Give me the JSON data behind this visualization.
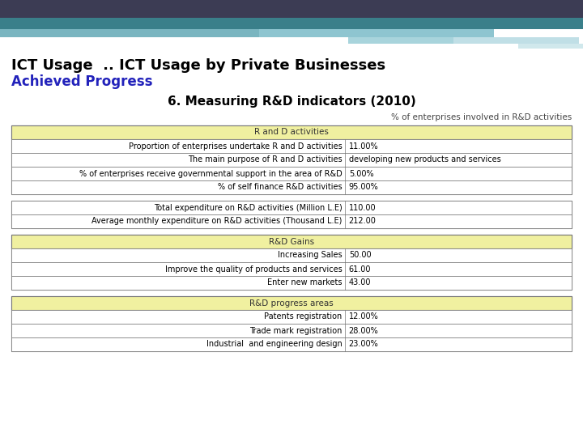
{
  "title1": "ICT Usage  .. ICT Usage by Private Businesses",
  "title2": "Achieved Progress",
  "subtitle": "6. Measuring R&D indicators (2010)",
  "note": "% of enterprises involved in R&D activities",
  "header_bg": "#f0f0a0",
  "border_color": "#777777",
  "title1_color": "#000000",
  "title2_color": "#2222bb",
  "sections": [
    {
      "header": "R and D activities",
      "rows": [
        [
          "Proportion of enterprises undertake R and D activities",
          "11.00%"
        ],
        [
          "The main purpose of R and D activities",
          "developing new products and services"
        ],
        [
          "% of enterprises receive governmental support in the area of R&D",
          "5.00%"
        ],
        [
          "% of self finance R&D activities",
          "95.00%"
        ]
      ]
    },
    {
      "header": null,
      "rows": [
        [
          "Total expenditure on R&D activities (Million L.E)",
          "110.00"
        ],
        [
          "Average monthly expenditure on R&D activities (Thousand L.E)",
          "212.00"
        ]
      ]
    },
    {
      "header": "R&D Gains",
      "rows": [
        [
          "Increasing Sales",
          "50.00"
        ],
        [
          "Improve the quality of products and services",
          "61.00"
        ],
        [
          "Enter new markets",
          "43.00"
        ]
      ]
    },
    {
      "header": "R&D progress areas",
      "rows": [
        [
          "Patents registration",
          "12.00%"
        ],
        [
          "Trade mark registration",
          "28.00%"
        ],
        [
          "Industrial  and engineering design",
          "23.00%"
        ]
      ]
    }
  ]
}
